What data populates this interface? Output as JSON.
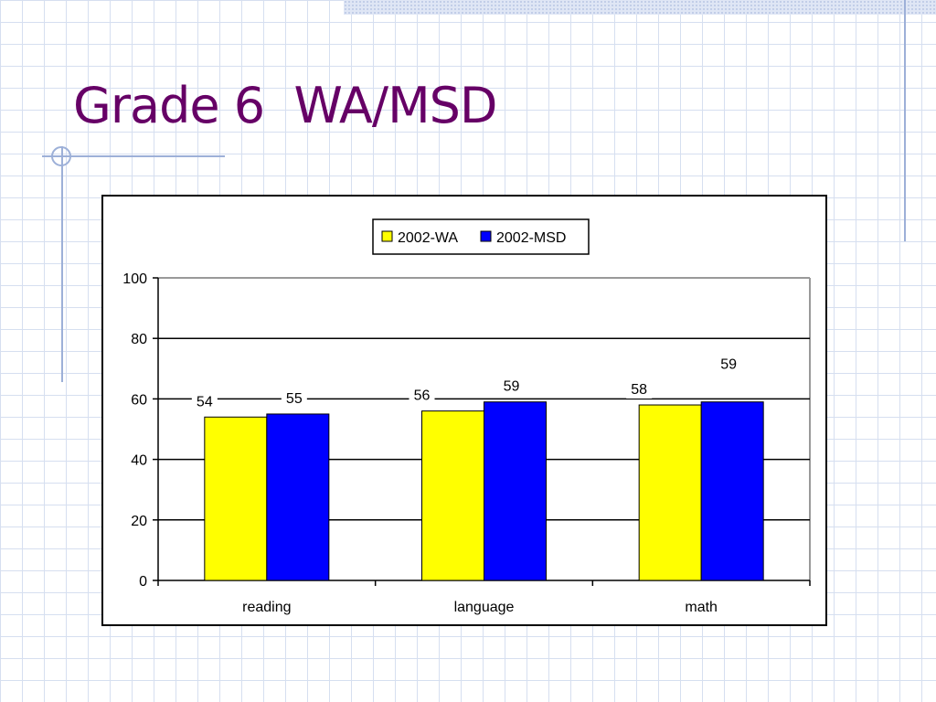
{
  "slide": {
    "title": "Grade 6  WA/MSD"
  },
  "colors": {
    "title": "#660066",
    "series_wa": "#ffff00",
    "series_msd": "#0000ff"
  },
  "chart_data": {
    "type": "bar",
    "categories": [
      "reading",
      "language",
      "math"
    ],
    "series": [
      {
        "name": "2002-WA",
        "values": [
          54,
          56,
          58
        ],
        "color": "#ffff00"
      },
      {
        "name": "2002-MSD",
        "values": [
          55,
          59,
          59
        ],
        "color": "#0000ff"
      }
    ],
    "ylim": [
      0,
      100
    ],
    "yticks": [
      0,
      20,
      40,
      60,
      80,
      100
    ],
    "grid": true,
    "legend": "top-center",
    "data_labels": true
  }
}
